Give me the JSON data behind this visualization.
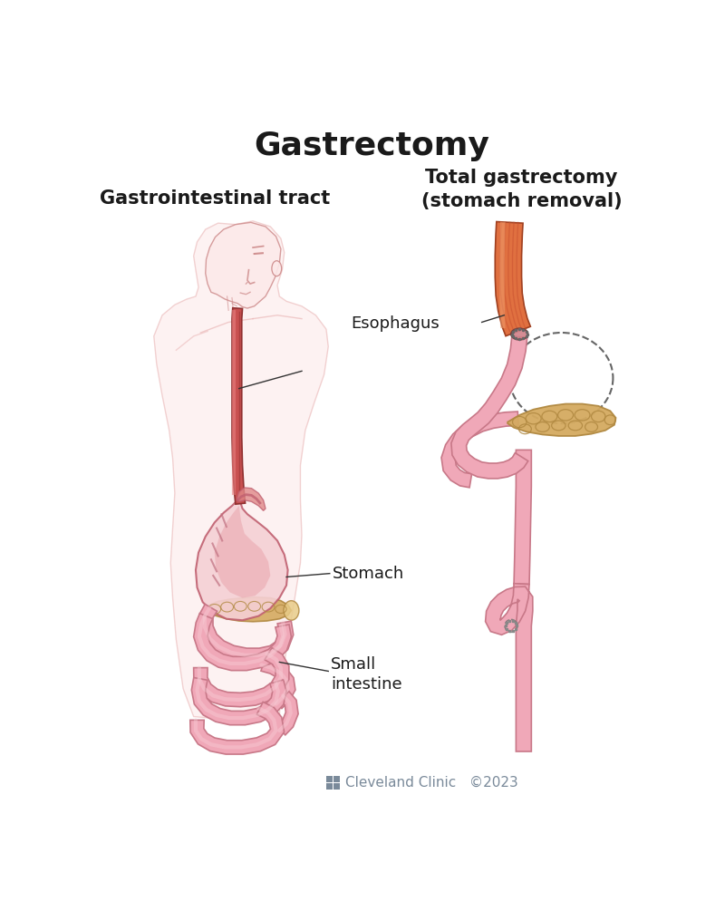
{
  "title": "Gastrectomy",
  "left_panel_title": "Gastrointestinal tract",
  "right_panel_title": "Total gastrectomy\n(stomach removal)",
  "label_esophagus": "Esophagus",
  "label_stomach": "Stomach",
  "label_small_intestine": "Small\nintestine",
  "footer_text": "Cleveland Clinic   ©2023",
  "bg_color": "#ffffff",
  "title_color": "#1a1a1a",
  "subtitle_color": "#1a1a1a",
  "label_color": "#1a1a1a",
  "footer_color": "#7a8a9a",
  "skin_fill": "#fce8e8",
  "skin_edge": "#e8b0b0",
  "skin_face_edge": "#cc8888",
  "esoph_tube_fill": "#c85050",
  "esoph_tube_edge": "#903030",
  "esoph_highlight": "#e88080",
  "esoph_orange_fill": "#d46030",
  "esoph_orange_edge": "#a04020",
  "esoph_orange_light": "#e88858",
  "stomach_fill": "#f0c0c8",
  "stomach_inner": "#e09098",
  "stomach_edge": "#c06070",
  "intestine_fill": "#f0a8b8",
  "intestine_edge": "#c87888",
  "intestine_light": "#f8d0d8",
  "pancreas_fill": "#d4aa60",
  "pancreas_edge": "#b08840",
  "pancreas_light": "#e8cc88",
  "line_color": "#333333",
  "dashed_color": "#666666",
  "staple_color": "#888888"
}
